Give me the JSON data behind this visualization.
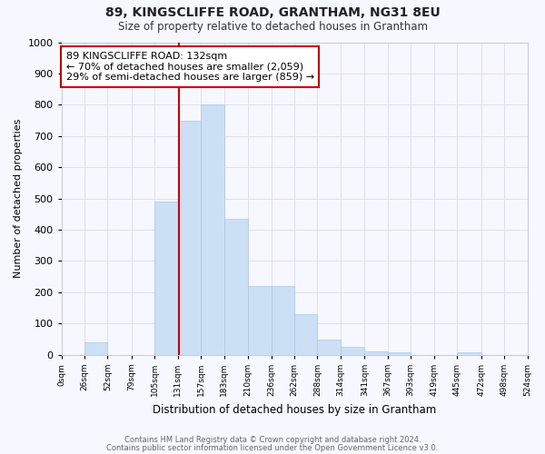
{
  "title": "89, KINGSCLIFFE ROAD, GRANTHAM, NG31 8EU",
  "subtitle": "Size of property relative to detached houses in Grantham",
  "xlabel": "Distribution of detached houses by size in Grantham",
  "ylabel": "Number of detached properties",
  "bar_color": "#cce0f5",
  "bar_edge_color": "#a8c8e8",
  "bins": [
    0,
    26,
    52,
    79,
    105,
    131,
    157,
    183,
    210,
    236,
    262,
    288,
    314,
    341,
    367,
    393,
    419,
    445,
    472,
    498,
    524
  ],
  "counts": [
    0,
    40,
    0,
    0,
    490,
    750,
    800,
    435,
    220,
    220,
    130,
    50,
    25,
    10,
    8,
    0,
    0,
    8,
    0,
    0
  ],
  "property_size": 132,
  "annotation_line1": "89 KINGSCLIFFE ROAD: 132sqm",
  "annotation_line2": "← 70% of detached houses are smaller (2,059)",
  "annotation_line3": "29% of semi-detached houses are larger (859) →",
  "annotation_box_color": "#ffffff",
  "annotation_box_edgecolor": "#cc0000",
  "vline_color": "#cc0000",
  "ylim": [
    0,
    1000
  ],
  "yticks": [
    0,
    100,
    200,
    300,
    400,
    500,
    600,
    700,
    800,
    900,
    1000
  ],
  "footnote1": "Contains HM Land Registry data © Crown copyright and database right 2024.",
  "footnote2": "Contains public sector information licensed under the Open Government Licence v3.0.",
  "bg_color": "#f7f7ff",
  "grid_color": "#dde0ee"
}
